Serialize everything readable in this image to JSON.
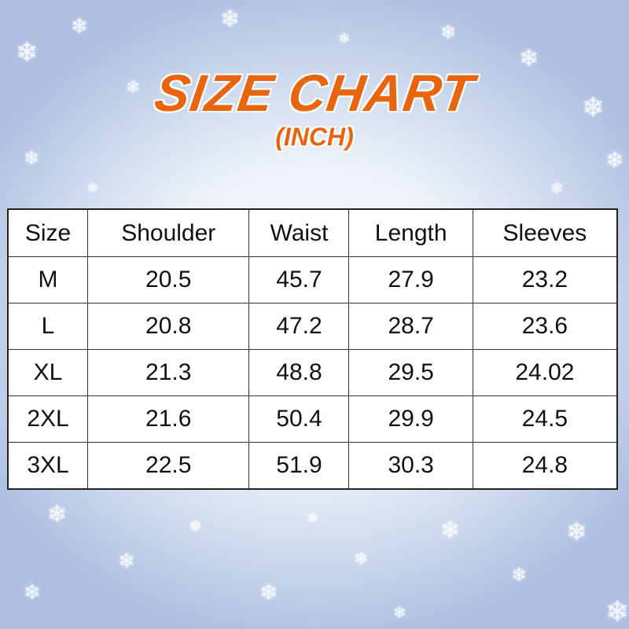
{
  "title": "SIZE CHART",
  "subtitle": "(INCH)",
  "colors": {
    "title": "#e8650f",
    "background": "#c5d3ea"
  },
  "chart_data": {
    "type": "table",
    "title": "SIZE CHART",
    "subtitle": "(INCH)",
    "columns": [
      "Size",
      "Shoulder",
      "Waist",
      "Length",
      "Sleeves"
    ],
    "rows": [
      [
        "M",
        "20.5",
        "45.7",
        "27.9",
        "23.2"
      ],
      [
        "L",
        "20.8",
        "47.2",
        "28.7",
        "23.6"
      ],
      [
        "XL",
        "21.3",
        "48.8",
        "29.5",
        "24.02"
      ],
      [
        "2XL",
        "21.6",
        "50.4",
        "29.9",
        "24.5"
      ],
      [
        "3XL",
        "22.5",
        "51.9",
        "30.3",
        "24.8"
      ]
    ]
  }
}
